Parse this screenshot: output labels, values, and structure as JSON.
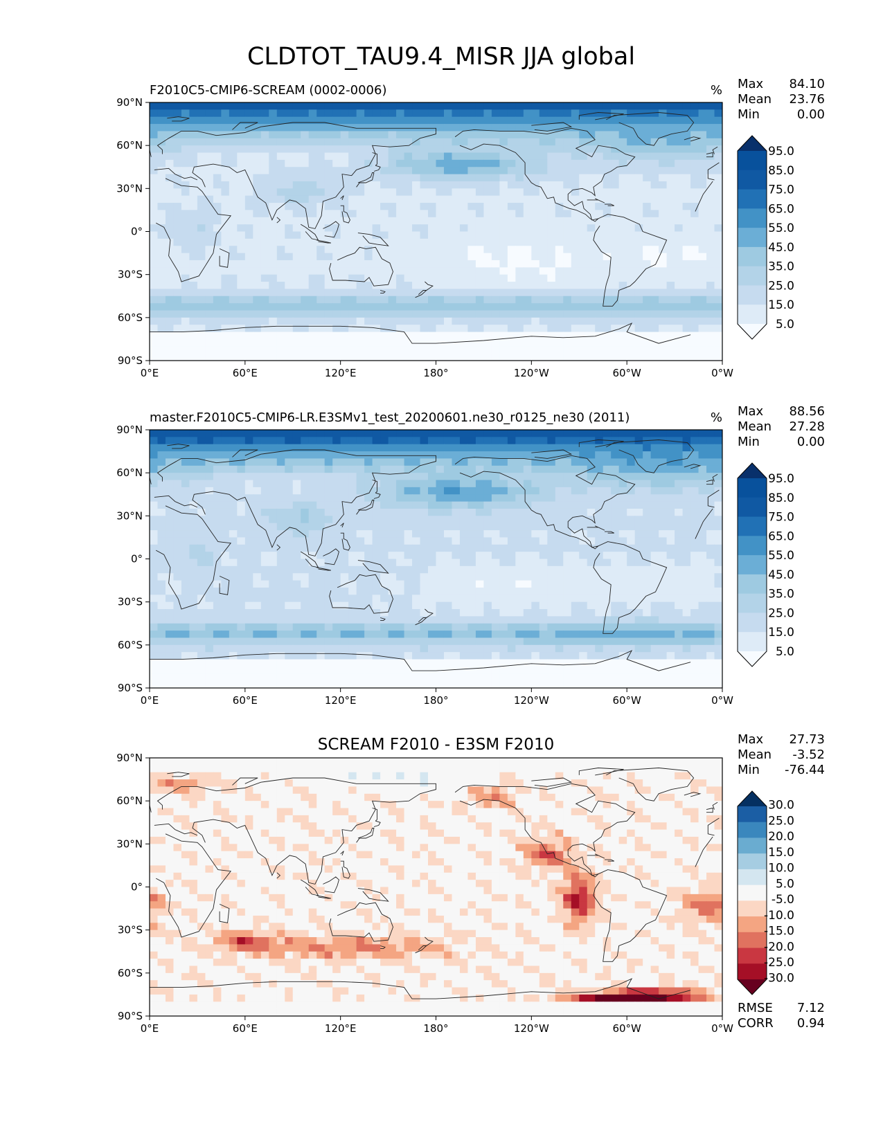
{
  "page_title": "CLDTOT_TAU9.4_MISR JJA global",
  "colors": {
    "blues": [
      "#f7fbff",
      "#deebf7",
      "#c6dbef",
      "#b3d3e8",
      "#9ecae1",
      "#6baed6",
      "#4292c6",
      "#2171b5",
      "#1059a3",
      "#08519c",
      "#08306b"
    ],
    "diff": [
      "#67001f",
      "#a50f26",
      "#c93741",
      "#e0725f",
      "#f4a582",
      "#fbd7c4",
      "#f7f7f7",
      "#d4e6f0",
      "#a6cde2",
      "#6aacd0",
      "#3a87bd",
      "#1b5ea4",
      "#053061"
    ],
    "coast": "#222222",
    "land_tint": "#ffffff"
  },
  "chart_data": [
    {
      "type": "heatmap",
      "title": "F2010C5-CMIP6-SCREAM (0002-0006)",
      "units": "%",
      "stats": {
        "max_label": "Max",
        "max": "84.10",
        "mean_label": "Mean",
        "mean": "23.76",
        "min_label": "Min",
        "min": "0.00"
      },
      "colorbar_ticks": [
        "95.0",
        "85.0",
        "75.0",
        "65.0",
        "55.0",
        "45.0",
        "35.0",
        "25.0",
        "15.0",
        "5.0"
      ],
      "xtick_labels": [
        "0°E",
        "60°E",
        "120°E",
        "180°",
        "120°W",
        "60°W",
        "0°W"
      ],
      "ytick_labels": [
        "90°N",
        "60°N",
        "30°N",
        "0°",
        "30°S",
        "60°S",
        "90°S"
      ],
      "xlim": [
        0,
        360
      ],
      "ylim": [
        -90,
        90
      ],
      "colormap": "blues"
    },
    {
      "type": "heatmap",
      "title": "master.F2010C5-CMIP6-LR.E3SMv1_test_20200601.ne30_r0125_ne30 (2011)",
      "units": "%",
      "stats": {
        "max_label": "Max",
        "max": "88.56",
        "mean_label": "Mean",
        "mean": "27.28",
        "min_label": "Min",
        "min": "0.00"
      },
      "colorbar_ticks": [
        "95.0",
        "85.0",
        "75.0",
        "65.0",
        "55.0",
        "45.0",
        "35.0",
        "25.0",
        "15.0",
        "5.0"
      ],
      "xtick_labels": [
        "0°E",
        "60°E",
        "120°E",
        "180°",
        "120°W",
        "60°W",
        "0°W"
      ],
      "ytick_labels": [
        "90°N",
        "60°N",
        "30°N",
        "0°",
        "30°S",
        "60°S",
        "90°S"
      ],
      "xlim": [
        0,
        360
      ],
      "ylim": [
        -90,
        90
      ],
      "colormap": "blues"
    },
    {
      "type": "heatmap",
      "title": "SCREAM F2010 - E3SM F2010",
      "units": "",
      "stats": {
        "max_label": "Max",
        "max": "27.73",
        "mean_label": "Mean",
        "mean": "-3.52",
        "min_label": "Min",
        "min": "-76.44"
      },
      "colorbar_ticks": [
        "30.0",
        "25.0",
        "20.0",
        "15.0",
        "10.0",
        "5.0",
        "-5.0",
        "-10.0",
        "-15.0",
        "-20.0",
        "-25.0",
        "-30.0"
      ],
      "xtick_labels": [
        "0°E",
        "60°E",
        "120°E",
        "180°",
        "120°W",
        "60°W",
        "0°W"
      ],
      "ytick_labels": [
        "90°N",
        "60°N",
        "30°N",
        "0°",
        "30°S",
        "60°S",
        "90°S"
      ],
      "xlim": [
        0,
        360
      ],
      "ylim": [
        -90,
        90
      ],
      "colormap": "diff",
      "metrics": {
        "rmse_label": "RMSE",
        "rmse": "7.12",
        "corr_label": "CORR",
        "corr": "0.94"
      }
    }
  ]
}
